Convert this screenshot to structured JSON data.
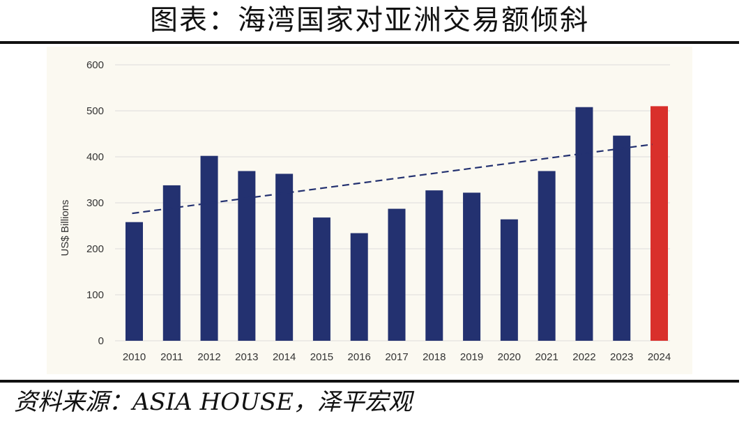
{
  "title": "图表：海湾国家对亚洲交易额倾斜",
  "source": "资料来源：ASIA HOUSE，泽平宏观",
  "colors": {
    "bar": "#233170",
    "highlight": "#d9302b",
    "trend": "#233170",
    "grid": "#dcdcdc",
    "tick": "#333333"
  },
  "chart_data": {
    "type": "bar",
    "title": "",
    "xlabel": "",
    "ylabel": "US$ Billions",
    "ylim": [
      0,
      600
    ],
    "yticks": [
      0,
      100,
      200,
      300,
      400,
      500,
      600
    ],
    "categories": [
      "2010",
      "2011",
      "2012",
      "2013",
      "2014",
      "2015",
      "2016",
      "2017",
      "2018",
      "2019",
      "2020",
      "2021",
      "2022",
      "2023",
      "2024"
    ],
    "values": [
      258,
      338,
      402,
      369,
      363,
      268,
      234,
      287,
      327,
      322,
      264,
      369,
      508,
      446,
      510
    ],
    "highlight_category": "2024",
    "trendline": {
      "style": "dashed",
      "from": [
        "2010",
        277
      ],
      "to": [
        "2024",
        427
      ]
    },
    "grid": true,
    "legend": "none"
  }
}
